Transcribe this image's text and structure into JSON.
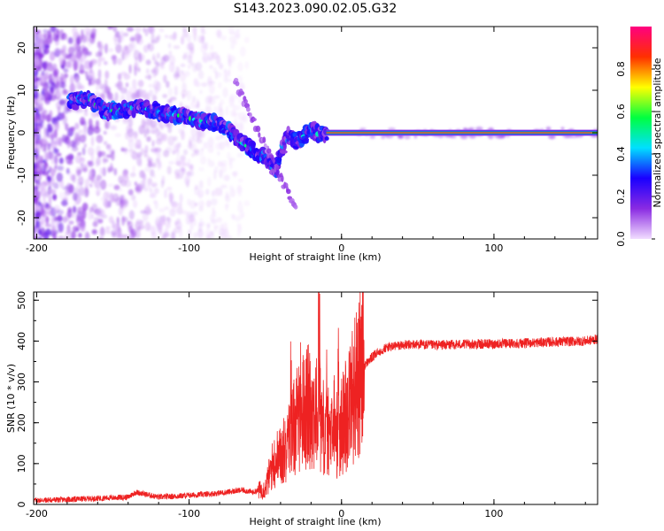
{
  "title": "S143.2023.090.02.05.G32",
  "colors": {
    "snr_line": "#ee2222",
    "frame": "#000000",
    "background": "#ffffff"
  },
  "chart_data": [
    {
      "type": "heatmap",
      "xlabel": "Height of straight line (km)",
      "ylabel": "Frequency (Hz)",
      "xlim": [
        -202,
        168
      ],
      "ylim": [
        -25,
        25
      ],
      "x_ticks": [
        "-200",
        "-100",
        "0",
        "100"
      ],
      "x_tick_values": [
        -200,
        -100,
        0,
        100
      ],
      "y_ticks": [
        "-20",
        "-10",
        "0",
        "10",
        "20"
      ],
      "y_tick_values": [
        -20,
        -10,
        0,
        10,
        20
      ],
      "colorbar": {
        "label": "Normalized spectral amplitude",
        "range": [
          0,
          1
        ],
        "ticks": [
          "0.0",
          "0.2",
          "0.4",
          "0.6",
          "0.8"
        ],
        "tick_values": [
          0.0,
          0.2,
          0.4,
          0.6,
          0.8
        ],
        "colormap": [
          "#f2ddff",
          "#8a2be2",
          "#1a00ff",
          "#00e0ff",
          "#00ff40",
          "#ffff00",
          "#ff3000",
          "#ff0080"
        ]
      },
      "ridge": {
        "description_points": [
          [
            -175,
            7.5
          ],
          [
            -165,
            7.8
          ],
          [
            -155,
            5.0
          ],
          [
            -145,
            5.3
          ],
          [
            -135,
            6.0
          ],
          [
            -125,
            5.5
          ],
          [
            -115,
            4.5
          ],
          [
            -105,
            4.0
          ],
          [
            -95,
            3.0
          ],
          [
            -85,
            2.5
          ],
          [
            -75,
            1.5
          ],
          [
            -70,
            -1.0
          ],
          [
            -62,
            -3.0
          ],
          [
            -55,
            -5.0
          ],
          [
            -48,
            -6.5
          ],
          [
            -43,
            -9.5
          ],
          [
            -40,
            -5.0
          ],
          [
            -35,
            -0.5
          ],
          [
            -30,
            -2.0
          ],
          [
            -25,
            -1.0
          ],
          [
            -20,
            1.0
          ],
          [
            -15,
            -0.3
          ],
          [
            -10,
            0.0
          ],
          [
            0,
            0.0
          ],
          [
            10,
            0.0
          ],
          [
            168,
            0.0
          ]
        ],
        "steady_line_from_km": -10,
        "steady_frequency_hz": 0
      }
    },
    {
      "type": "line",
      "xlabel": "Height of straight line (km)",
      "ylabel": "SNR (10 * v/v)",
      "xlim": [
        -202,
        168
      ],
      "ylim": [
        0,
        520
      ],
      "x_ticks": [
        "-200",
        "-100",
        "0",
        "100"
      ],
      "x_tick_values": [
        -200,
        -100,
        0,
        100
      ],
      "y_ticks": [
        "0",
        "100",
        "200",
        "300",
        "400",
        "500"
      ],
      "y_tick_values": [
        0,
        100,
        200,
        300,
        400,
        500
      ],
      "series": [
        {
          "x": [
            -202,
            -180,
            -160,
            -140,
            -135,
            -120,
            -100,
            -80,
            -65,
            -58,
            -50,
            -45,
            -40,
            -35,
            -30,
            -25,
            -20,
            -15,
            -10,
            -5,
            0,
            5,
            10,
            15,
            20,
            25,
            30,
            40,
            50,
            60,
            80,
            100,
            120,
            140,
            160,
            168
          ],
          "values": [
            10,
            12,
            15,
            18,
            30,
            18,
            22,
            28,
            35,
            30,
            40,
            100,
            120,
            150,
            200,
            230,
            240,
            210,
            180,
            160,
            190,
            250,
            300,
            340,
            360,
            375,
            385,
            390,
            392,
            390,
            392,
            393,
            395,
            398,
            400,
            405
          ],
          "spikes": [
            {
              "x": -43,
              "value": 125
            },
            {
              "x": -36,
              "value": 180
            },
            {
              "x": -33,
              "value": 320
            },
            {
              "x": -27,
              "value": 290
            },
            {
              "x": -22,
              "value": 350
            },
            {
              "x": -15,
              "value": 420
            },
            {
              "x": -10,
              "value": 300
            },
            {
              "x": -5,
              "value": 340
            },
            {
              "x": -2,
              "value": 330
            }
          ],
          "peak": {
            "x": -14,
            "value": 520
          }
        }
      ]
    }
  ]
}
